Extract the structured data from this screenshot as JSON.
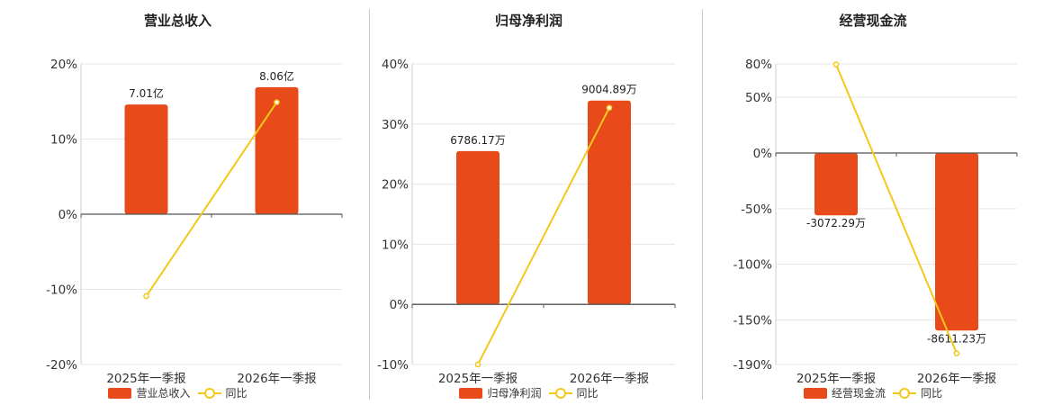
{
  "colors": {
    "bar": "#E84A19",
    "line": "#F2C81B"
  },
  "chart_data": [
    {
      "type": "bar",
      "title": "营业总收入",
      "categories": [
        "2025年一季报",
        "2026年一季报"
      ],
      "bar_values": [
        14.6,
        16.9
      ],
      "bar_labels": [
        "7.01亿",
        "8.06亿"
      ],
      "line_values": [
        -10.9,
        14.9
      ],
      "yticks": [
        "20%",
        "10%",
        "0%",
        "-10%",
        "-20%"
      ],
      "ylim": [
        -20,
        20
      ],
      "legend": {
        "bar": "营业总收入",
        "line": "同比"
      }
    },
    {
      "type": "bar",
      "title": "归母净利润",
      "categories": [
        "2025年一季报",
        "2026年一季报"
      ],
      "bar_values": [
        25.5,
        33.9
      ],
      "bar_labels": [
        "6786.17万",
        "9004.89万"
      ],
      "line_values": [
        -10.0,
        32.7
      ],
      "yticks": [
        "40%",
        "30%",
        "20%",
        "10%",
        "0%",
        "-10%"
      ],
      "ylim": [
        -10,
        40
      ],
      "legend": {
        "bar": "归母净利润",
        "line": "同比"
      }
    },
    {
      "type": "bar",
      "title": "经营现金流",
      "categories": [
        "2025年一季报",
        "2026年一季报"
      ],
      "bar_values": [
        -56.0,
        -159.5
      ],
      "bar_labels": [
        "-3072.29万",
        "-8611.23万"
      ],
      "line_values": [
        79.5,
        -180.0
      ],
      "yticks": [
        "80%",
        "50%",
        "0%",
        "-50%",
        "-100%",
        "-150%",
        "-190%"
      ],
      "ylim": [
        -190,
        80
      ],
      "legend": {
        "bar": "经营现金流",
        "line": "同比"
      }
    }
  ]
}
